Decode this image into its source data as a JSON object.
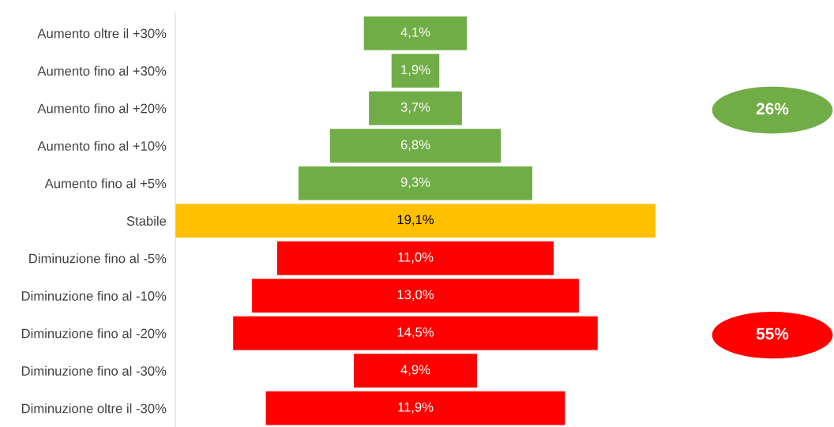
{
  "chart_data": {
    "type": "other",
    "categories": [
      "Aumento oltre il +30%",
      "Aumento fino al +30%",
      "Aumento fino al +20%",
      "Aumento fino al +10%",
      "Aumento fino al +5%",
      "Stabile",
      "Diminuzione fino al -5%",
      "Diminuzione fino al -10%",
      "Diminuzione fino al -20%",
      "Diminuzione fino al -30%",
      "Diminuzione oltre il -30%"
    ],
    "values": [
      4.1,
      1.9,
      3.7,
      6.8,
      9.3,
      19.1,
      11.0,
      13.0,
      14.5,
      4.9,
      11.9
    ],
    "value_labels": [
      "4,1%",
      "1,9%",
      "3,7%",
      "6,8%",
      "9,3%",
      "19,1%",
      "11,0%",
      "13,0%",
      "14,5%",
      "4,9%",
      "11,9%"
    ],
    "colors": [
      "#70ad47",
      "#70ad47",
      "#70ad47",
      "#70ad47",
      "#70ad47",
      "#ffc000",
      "#ff0000",
      "#ff0000",
      "#ff0000",
      "#ff0000",
      "#ff0000"
    ],
    "annotations": [
      "26%",
      "55%"
    ]
  }
}
